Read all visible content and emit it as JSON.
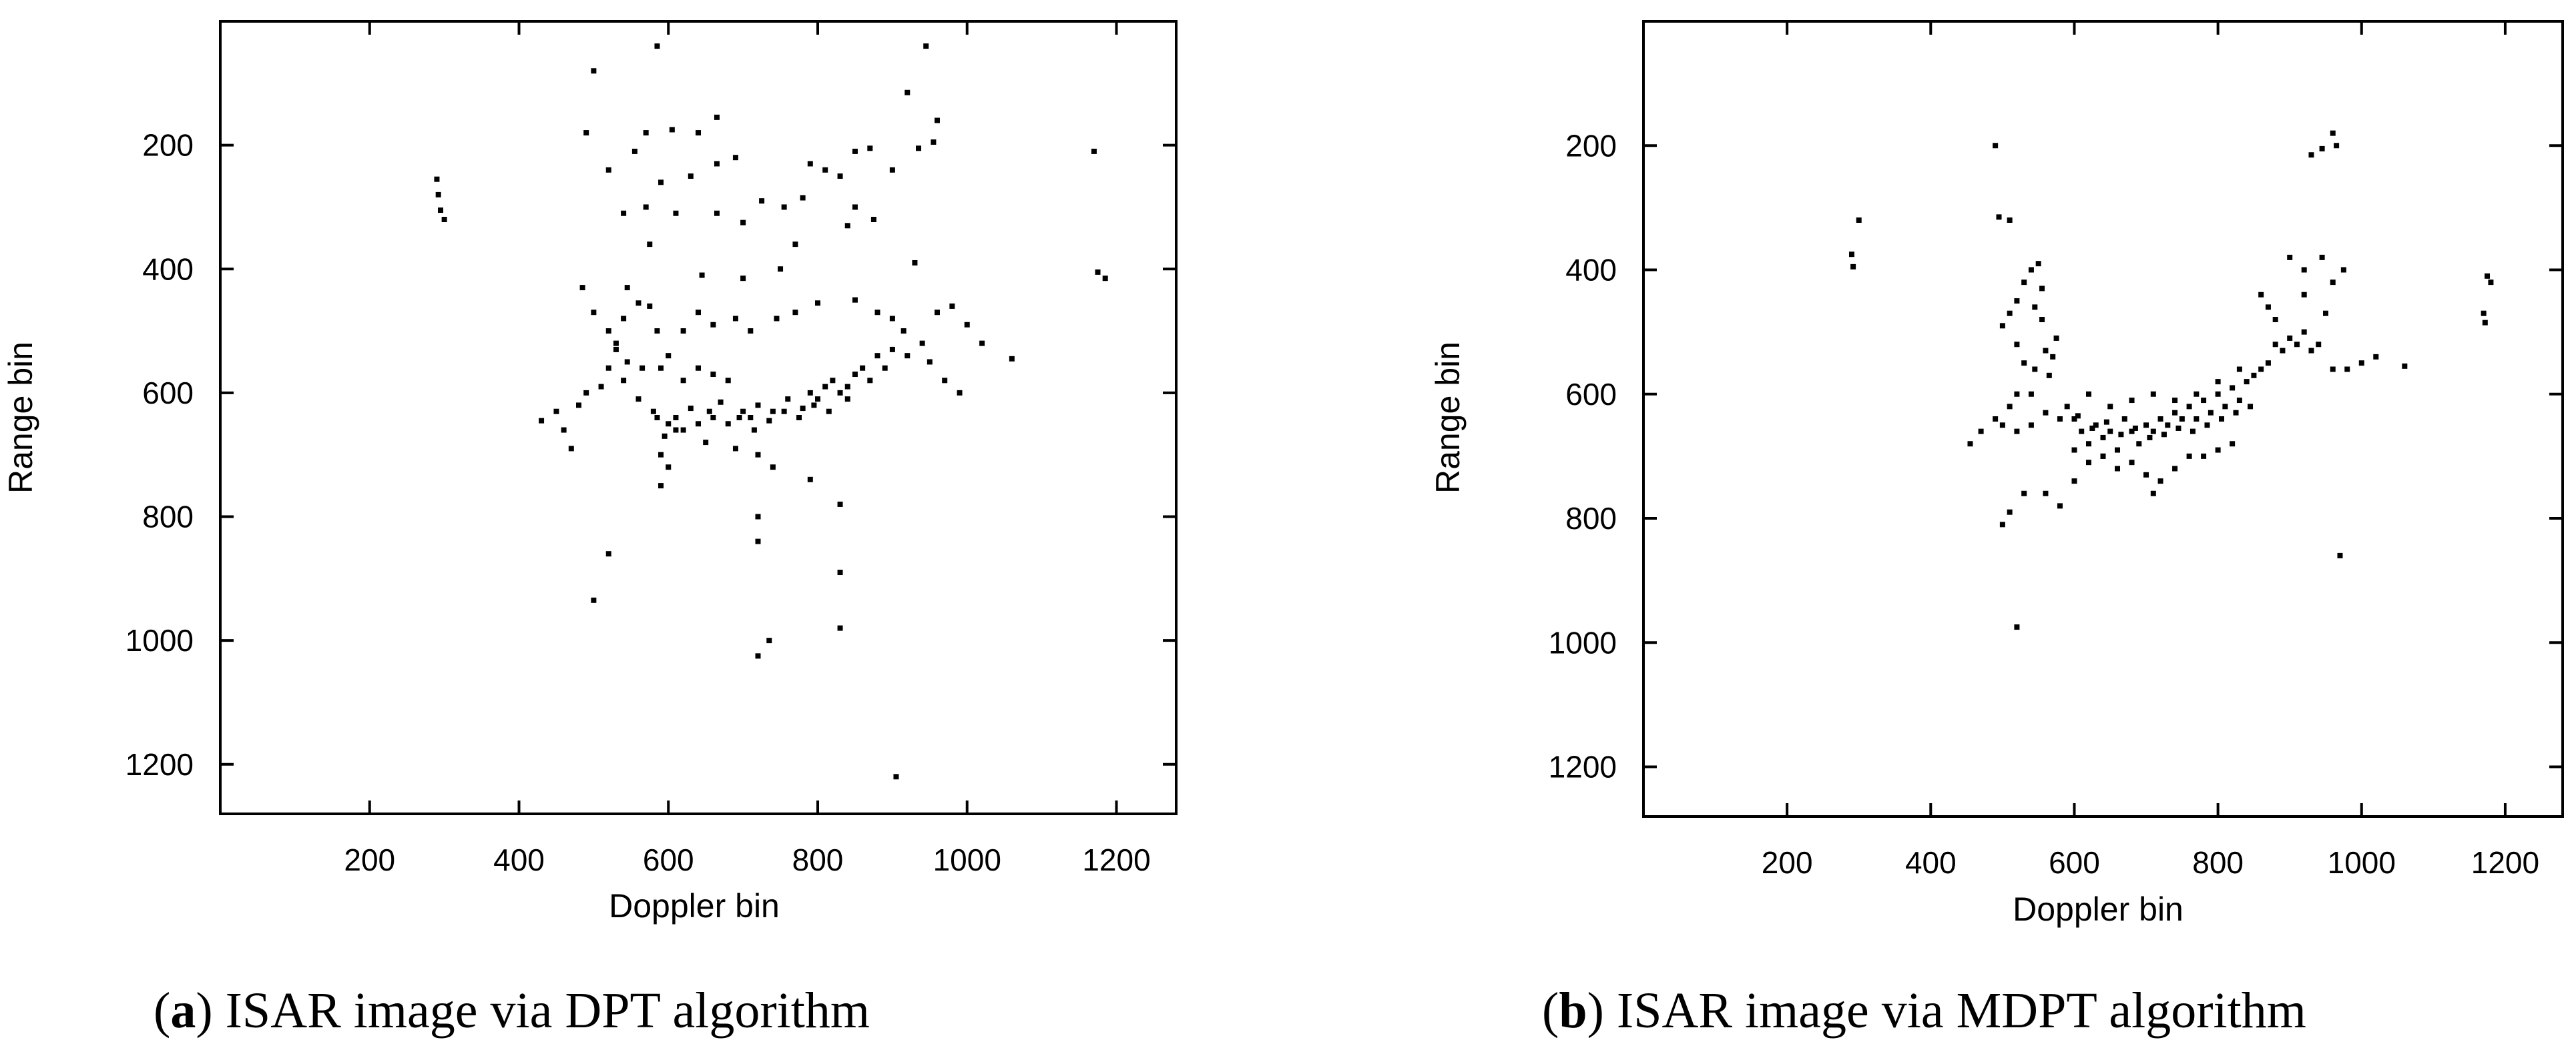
{
  "chart_data": [
    {
      "type": "scatter",
      "caption_letter": "a",
      "caption_text": "ISAR image via DPT algorithm",
      "xlabel": "Doppler bin",
      "ylabel": "Range bin",
      "xlim": [
        0,
        1280
      ],
      "ylim": [
        1280,
        0
      ],
      "y_inverted": true,
      "grid": false,
      "x_ticks": [
        200,
        400,
        600,
        800,
        1000,
        1200
      ],
      "y_ticks": [
        200,
        400,
        600,
        800,
        1000,
        1200
      ],
      "point_color": "#000000",
      "points": [
        [
          290,
          255
        ],
        [
          292,
          280
        ],
        [
          295,
          305
        ],
        [
          300,
          320
        ],
        [
          500,
          80
        ],
        [
          585,
          40
        ],
        [
          945,
          40
        ],
        [
          920,
          115
        ],
        [
          605,
          175
        ],
        [
          640,
          180
        ],
        [
          665,
          155
        ],
        [
          570,
          180
        ],
        [
          490,
          180
        ],
        [
          520,
          240
        ],
        [
          555,
          210
        ],
        [
          590,
          260
        ],
        [
          630,
          250
        ],
        [
          665,
          230
        ],
        [
          690,
          220
        ],
        [
          540,
          310
        ],
        [
          570,
          300
        ],
        [
          610,
          310
        ],
        [
          665,
          310
        ],
        [
          700,
          325
        ],
        [
          725,
          290
        ],
        [
          755,
          300
        ],
        [
          780,
          285
        ],
        [
          790,
          230
        ],
        [
          810,
          240
        ],
        [
          830,
          250
        ],
        [
          850,
          210
        ],
        [
          870,
          205
        ],
        [
          900,
          240
        ],
        [
          935,
          205
        ],
        [
          955,
          195
        ],
        [
          960,
          160
        ],
        [
          850,
          300
        ],
        [
          875,
          320
        ],
        [
          840,
          330
        ],
        [
          770,
          360
        ],
        [
          575,
          360
        ],
        [
          645,
          410
        ],
        [
          700,
          415
        ],
        [
          750,
          400
        ],
        [
          930,
          390
        ],
        [
          545,
          430
        ],
        [
          560,
          455
        ],
        [
          575,
          460
        ],
        [
          585,
          500
        ],
        [
          520,
          500
        ],
        [
          530,
          520
        ],
        [
          540,
          480
        ],
        [
          500,
          470
        ],
        [
          485,
          430
        ],
        [
          600,
          540
        ],
        [
          620,
          500
        ],
        [
          640,
          470
        ],
        [
          660,
          490
        ],
        [
          690,
          480
        ],
        [
          710,
          500
        ],
        [
          745,
          480
        ],
        [
          770,
          470
        ],
        [
          800,
          455
        ],
        [
          850,
          450
        ],
        [
          880,
          470
        ],
        [
          900,
          480
        ],
        [
          915,
          500
        ],
        [
          940,
          520
        ],
        [
          960,
          470
        ],
        [
          980,
          460
        ],
        [
          1000,
          490
        ],
        [
          1020,
          520
        ],
        [
          1060,
          545
        ],
        [
          880,
          540
        ],
        [
          900,
          530
        ],
        [
          920,
          540
        ],
        [
          950,
          550
        ],
        [
          970,
          580
        ],
        [
          990,
          600
        ],
        [
          520,
          560
        ],
        [
          510,
          590
        ],
        [
          490,
          600
        ],
        [
          480,
          620
        ],
        [
          450,
          630
        ],
        [
          430,
          645
        ],
        [
          460,
          660
        ],
        [
          470,
          690
        ],
        [
          540,
          580
        ],
        [
          560,
          610
        ],
        [
          580,
          630
        ],
        [
          600,
          650
        ],
        [
          610,
          640
        ],
        [
          620,
          660
        ],
        [
          640,
          650
        ],
        [
          660,
          640
        ],
        [
          680,
          650
        ],
        [
          700,
          630
        ],
        [
          710,
          640
        ],
        [
          720,
          620
        ],
        [
          740,
          630
        ],
        [
          760,
          610
        ],
        [
          780,
          625
        ],
        [
          790,
          600
        ],
        [
          800,
          610
        ],
        [
          810,
          590
        ],
        [
          820,
          580
        ],
        [
          830,
          600
        ],
        [
          840,
          590
        ],
        [
          850,
          570
        ],
        [
          860,
          560
        ],
        [
          870,
          580
        ],
        [
          890,
          560
        ],
        [
          595,
          670
        ],
        [
          590,
          700
        ],
        [
          600,
          720
        ],
        [
          650,
          680
        ],
        [
          690,
          690
        ],
        [
          720,
          700
        ],
        [
          740,
          720
        ],
        [
          790,
          740
        ],
        [
          830,
          780
        ],
        [
          830,
          890
        ],
        [
          830,
          980
        ],
        [
          735,
          1000
        ],
        [
          720,
          1025
        ],
        [
          720,
          840
        ],
        [
          720,
          800
        ],
        [
          590,
          750
        ],
        [
          520,
          860
        ],
        [
          500,
          935
        ],
        [
          905,
          1220
        ],
        [
          585,
          640
        ],
        [
          610,
          660
        ],
        [
          630,
          625
        ],
        [
          655,
          630
        ],
        [
          670,
          615
        ],
        [
          695,
          640
        ],
        [
          715,
          660
        ],
        [
          735,
          645
        ],
        [
          755,
          630
        ],
        [
          775,
          640
        ],
        [
          795,
          620
        ],
        [
          815,
          630
        ],
        [
          840,
          610
        ],
        [
          530,
          530
        ],
        [
          545,
          550
        ],
        [
          565,
          560
        ],
        [
          590,
          560
        ],
        [
          620,
          580
        ],
        [
          640,
          560
        ],
        [
          660,
          570
        ],
        [
          680,
          580
        ],
        [
          1170,
          210
        ],
        [
          1175,
          405
        ],
        [
          1185,
          415
        ]
      ]
    },
    {
      "type": "scatter",
      "caption_letter": "b",
      "caption_text": "ISAR image via MDPT algorithm",
      "xlabel": "Doppler bin",
      "ylabel": "Range bin",
      "xlim": [
        0,
        1280
      ],
      "ylim": [
        1280,
        0
      ],
      "y_inverted": true,
      "grid": false,
      "x_ticks": [
        200,
        400,
        600,
        800,
        1000,
        1200
      ],
      "y_ticks": [
        200,
        400,
        600,
        800,
        1000,
        1200
      ],
      "point_color": "#000000",
      "points": [
        [
          290,
          375
        ],
        [
          292,
          395
        ],
        [
          300,
          320
        ],
        [
          490,
          200
        ],
        [
          495,
          315
        ],
        [
          510,
          320
        ],
        [
          930,
          215
        ],
        [
          945,
          205
        ],
        [
          960,
          180
        ],
        [
          965,
          200
        ],
        [
          900,
          380
        ],
        [
          920,
          400
        ],
        [
          945,
          380
        ],
        [
          960,
          420
        ],
        [
          975,
          400
        ],
        [
          920,
          440
        ],
        [
          950,
          470
        ],
        [
          540,
          400
        ],
        [
          550,
          390
        ],
        [
          555,
          430
        ],
        [
          530,
          420
        ],
        [
          520,
          450
        ],
        [
          510,
          470
        ],
        [
          500,
          490
        ],
        [
          520,
          520
        ],
        [
          530,
          550
        ],
        [
          545,
          560
        ],
        [
          560,
          530
        ],
        [
          570,
          540
        ],
        [
          540,
          600
        ],
        [
          520,
          600
        ],
        [
          510,
          620
        ],
        [
          490,
          640
        ],
        [
          470,
          660
        ],
        [
          455,
          680
        ],
        [
          500,
          650
        ],
        [
          520,
          660
        ],
        [
          540,
          650
        ],
        [
          560,
          630
        ],
        [
          580,
          640
        ],
        [
          600,
          640
        ],
        [
          610,
          660
        ],
        [
          620,
          680
        ],
        [
          630,
          650
        ],
        [
          640,
          670
        ],
        [
          650,
          660
        ],
        [
          660,
          690
        ],
        [
          670,
          640
        ],
        [
          680,
          660
        ],
        [
          690,
          680
        ],
        [
          700,
          650
        ],
        [
          710,
          660
        ],
        [
          720,
          640
        ],
        [
          730,
          650
        ],
        [
          740,
          630
        ],
        [
          750,
          640
        ],
        [
          760,
          620
        ],
        [
          770,
          640
        ],
        [
          780,
          610
        ],
        [
          790,
          630
        ],
        [
          800,
          600
        ],
        [
          810,
          620
        ],
        [
          820,
          590
        ],
        [
          830,
          610
        ],
        [
          840,
          580
        ],
        [
          850,
          570
        ],
        [
          860,
          560
        ],
        [
          870,
          550
        ],
        [
          880,
          520
        ],
        [
          890,
          530
        ],
        [
          900,
          510
        ],
        [
          910,
          520
        ],
        [
          920,
          500
        ],
        [
          930,
          530
        ],
        [
          940,
          520
        ],
        [
          960,
          560
        ],
        [
          980,
          560
        ],
        [
          1000,
          550
        ],
        [
          1020,
          540
        ],
        [
          1060,
          555
        ],
        [
          860,
          440
        ],
        [
          870,
          460
        ],
        [
          880,
          480
        ],
        [
          600,
          690
        ],
        [
          620,
          710
        ],
        [
          640,
          700
        ],
        [
          660,
          720
        ],
        [
          680,
          710
        ],
        [
          700,
          730
        ],
        [
          720,
          740
        ],
        [
          740,
          720
        ],
        [
          760,
          700
        ],
        [
          780,
          700
        ],
        [
          800,
          690
        ],
        [
          820,
          680
        ],
        [
          600,
          740
        ],
        [
          560,
          760
        ],
        [
          530,
          760
        ],
        [
          510,
          790
        ],
        [
          500,
          810
        ],
        [
          580,
          780
        ],
        [
          640,
          700
        ],
        [
          710,
          760
        ],
        [
          970,
          860
        ],
        [
          520,
          975
        ],
        [
          1175,
          410
        ],
        [
          1180,
          420
        ],
        [
          1170,
          470
        ],
        [
          1172,
          485
        ],
        [
          620,
          600
        ],
        [
          650,
          620
        ],
        [
          680,
          610
        ],
        [
          710,
          600
        ],
        [
          740,
          610
        ],
        [
          770,
          600
        ],
        [
          800,
          580
        ],
        [
          830,
          560
        ],
        [
          590,
          620
        ],
        [
          605,
          635
        ],
        [
          625,
          655
        ],
        [
          645,
          645
        ],
        [
          665,
          665
        ],
        [
          685,
          655
        ],
        [
          705,
          670
        ],
        [
          725,
          665
        ],
        [
          745,
          655
        ],
        [
          765,
          660
        ],
        [
          785,
          650
        ],
        [
          805,
          640
        ],
        [
          825,
          630
        ],
        [
          845,
          620
        ],
        [
          565,
          570
        ],
        [
          575,
          510
        ],
        [
          555,
          480
        ],
        [
          545,
          460
        ]
      ]
    }
  ]
}
